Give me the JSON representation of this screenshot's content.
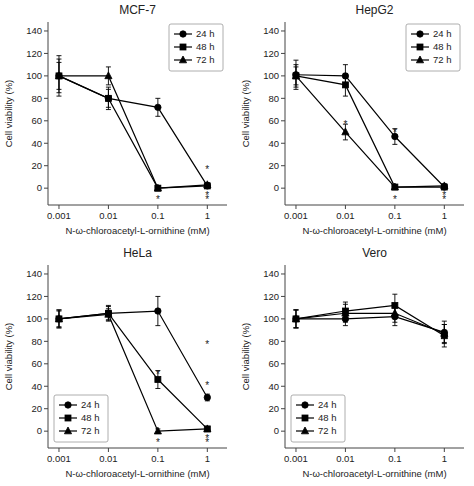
{
  "chart_data": [
    {
      "type": "line",
      "title": "MCF-7",
      "x_label": "N-ω-chloroacetyl-L-ornithine (mM)",
      "y_label": "Cell viability (%)",
      "x": [
        0.001,
        0.01,
        0.1,
        1.0
      ],
      "series": [
        {
          "name": "24 h",
          "marker": "circle",
          "values": [
            100,
            80,
            72,
            2
          ],
          "errors": [
            18,
            8,
            8,
            2
          ]
        },
        {
          "name": "48 h",
          "marker": "square",
          "values": [
            100,
            80,
            0,
            2
          ],
          "errors": [
            15,
            10,
            2,
            2
          ]
        },
        {
          "name": "72 h",
          "marker": "triangle",
          "values": [
            100,
            100,
            0,
            3
          ],
          "errors": [
            12,
            8,
            2,
            2
          ]
        }
      ],
      "color": "black",
      "log": "x",
      "grid": false,
      "legend": "upper right",
      "xlim": [
        0.0006,
        2.5
      ],
      "xticks": [
        0.001,
        0.01,
        0.1,
        1
      ],
      "ylim": [
        -15,
        148
      ],
      "yticks": [
        0,
        20,
        40,
        60,
        80,
        100,
        120,
        140
      ],
      "annotations": [
        {
          "x": 0.1,
          "y": -10,
          "text": "*"
        },
        {
          "x": 1.0,
          "y": -10,
          "text": "*"
        },
        {
          "x": 1.0,
          "y": -6,
          "text": "*"
        },
        {
          "x": 1.0,
          "y": 17,
          "text": "*"
        }
      ]
    },
    {
      "type": "line",
      "title": "HepG2",
      "x_label": "N-ω-chloroacetyl-L-ornithine (mM)",
      "y_label": "Cell viability (%)",
      "x": [
        0.001,
        0.01,
        0.1,
        1.0
      ],
      "series": [
        {
          "name": "24 h",
          "marker": "circle",
          "values": [
            101,
            100,
            46,
            1
          ],
          "errors": [
            13,
            10,
            7,
            1
          ]
        },
        {
          "name": "48 h",
          "marker": "square",
          "values": [
            100,
            92,
            1,
            1
          ],
          "errors": [
            10,
            10,
            1,
            1
          ]
        },
        {
          "name": "72 h",
          "marker": "triangle",
          "values": [
            100,
            50,
            1,
            2
          ],
          "errors": [
            8,
            7,
            1,
            2
          ]
        }
      ],
      "color": "black",
      "log": "x",
      "grid": false,
      "legend": "upper right",
      "xlim": [
        0.0006,
        2.5
      ],
      "xticks": [
        0.001,
        0.01,
        0.1,
        1
      ],
      "ylim": [
        -15,
        148
      ],
      "yticks": [
        0,
        20,
        40,
        60,
        80,
        100,
        120,
        140
      ],
      "annotations": [
        {
          "x": 0.01,
          "y": 57,
          "text": "*"
        },
        {
          "x": 0.1,
          "y": -10,
          "text": "*"
        },
        {
          "x": 0.1,
          "y": 50,
          "text": "*"
        },
        {
          "x": 1.0,
          "y": -10,
          "text": "*"
        },
        {
          "x": 1.0,
          "y": -6,
          "text": "*"
        }
      ]
    },
    {
      "type": "line",
      "title": "HeLa",
      "x_label": "N-ω-chloroacetyl-L-ornithine (mM)",
      "y_label": "Cell viability (%)",
      "x": [
        0.001,
        0.01,
        0.1,
        1.0
      ],
      "series": [
        {
          "name": "24 h",
          "marker": "circle",
          "values": [
            100,
            105,
            107,
            30
          ],
          "errors": [
            8,
            7,
            13,
            3
          ]
        },
        {
          "name": "48 h",
          "marker": "square",
          "values": [
            100,
            105,
            46,
            2
          ],
          "errors": [
            8,
            6,
            8,
            2
          ]
        },
        {
          "name": "72 h",
          "marker": "triangle",
          "values": [
            100,
            104,
            0,
            2
          ],
          "errors": [
            7,
            5,
            2,
            2
          ]
        }
      ],
      "color": "black",
      "log": "x",
      "grid": false,
      "legend": "lower left",
      "xlim": [
        0.0006,
        2.5
      ],
      "xticks": [
        0.001,
        0.01,
        0.1,
        1
      ],
      "ylim": [
        -15,
        148
      ],
      "yticks": [
        0,
        20,
        40,
        60,
        80,
        100,
        120,
        140
      ],
      "annotations": [
        {
          "x": 0.1,
          "y": -10,
          "text": "*"
        },
        {
          "x": 0.1,
          "y": 51,
          "text": "*"
        },
        {
          "x": 1.0,
          "y": -10,
          "text": "*"
        },
        {
          "x": 1.0,
          "y": -6,
          "text": "*"
        },
        {
          "x": 1.0,
          "y": 78,
          "text": "*"
        },
        {
          "x": 1.0,
          "y": 41,
          "text": "*"
        }
      ]
    },
    {
      "type": "line",
      "title": "Vero",
      "x_label": "N-ω-chloroacetyl-L-ornithine (mM)",
      "y_label": "Cell viability (%)",
      "x": [
        0.001,
        0.01,
        0.1,
        1.0
      ],
      "series": [
        {
          "name": "24 h",
          "marker": "circle",
          "values": [
            100,
            100,
            102,
            88
          ],
          "errors": [
            8,
            6,
            8,
            10
          ]
        },
        {
          "name": "48 h",
          "marker": "square",
          "values": [
            100,
            107,
            112,
            85
          ],
          "errors": [
            8,
            8,
            10,
            10
          ]
        },
        {
          "name": "72 h",
          "marker": "triangle",
          "values": [
            100,
            105,
            105,
            87
          ],
          "errors": [
            8,
            8,
            8,
            8
          ]
        }
      ],
      "color": "black",
      "log": "x",
      "grid": false,
      "legend": "lower left",
      "xlim": [
        0.0006,
        2.5
      ],
      "xticks": [
        0.001,
        0.01,
        0.1,
        1
      ],
      "ylim": [
        -15,
        148
      ],
      "yticks": [
        0,
        20,
        40,
        60,
        80,
        100,
        120,
        140
      ],
      "annotations": []
    }
  ]
}
